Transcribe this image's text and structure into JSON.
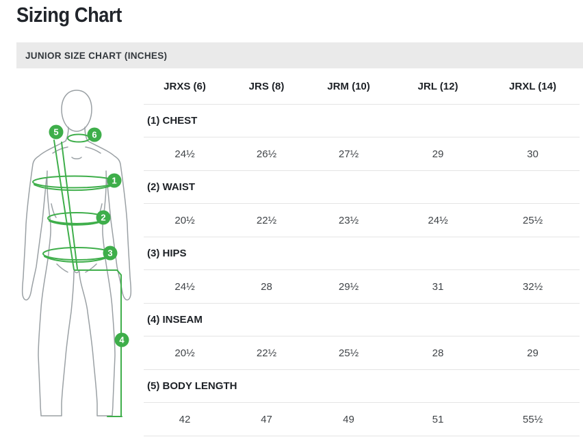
{
  "page": {
    "title": "Sizing Chart"
  },
  "section": {
    "header": "JUNIOR SIZE CHART (INCHES)"
  },
  "figure": {
    "markers": [
      "1",
      "2",
      "3",
      "4",
      "5",
      "6"
    ]
  },
  "table": {
    "columns": [
      "JRXS (6)",
      "JRS (8)",
      "JRM (10)",
      "JRL (12)",
      "JRXL (14)"
    ],
    "rows": [
      {
        "label": "(1) CHEST",
        "values": [
          "24½",
          "26½",
          "27½",
          "29",
          "30"
        ]
      },
      {
        "label": "(2) WAIST",
        "values": [
          "20½",
          "22½",
          "23½",
          "24½",
          "25½"
        ]
      },
      {
        "label": "(3) HIPS",
        "values": [
          "24½",
          "28",
          "29½",
          "31",
          "32½"
        ]
      },
      {
        "label": "(4) INSEAM",
        "values": [
          "20½",
          "22½",
          "25½",
          "28",
          "29"
        ]
      },
      {
        "label": "(5) BODY LENGTH",
        "values": [
          "42",
          "47",
          "49",
          "51",
          "55½"
        ]
      }
    ]
  },
  "colors": {
    "accent": "#3eae4a",
    "bar_bg": "#eaeaea",
    "bar_text": "#33383d",
    "title_text": "#21252b",
    "header_text": "#1d2126",
    "value_text": "#3f4347",
    "divider": "#e4e4e4",
    "outline_gray": "#9aa0a4"
  }
}
